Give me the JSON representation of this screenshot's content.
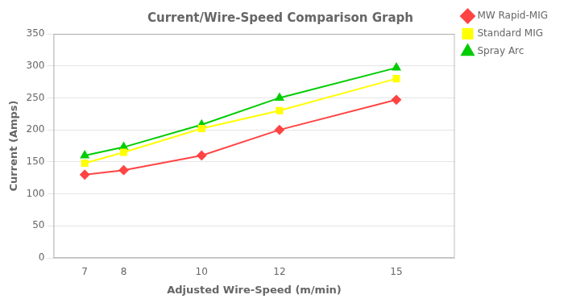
{
  "chart_data": {
    "type": "line",
    "title": "Current/Wire-Speed Comparison Graph",
    "x_label": "Adjusted Wire-Speed (m/min)",
    "y_label": "Current (Amps)",
    "x": [
      7,
      8,
      10,
      12,
      15
    ],
    "series": [
      {
        "name": "MW Rapid-MIG",
        "color": "#FF4444",
        "marker": "diamond",
        "values": [
          130,
          137,
          160,
          200,
          247
        ]
      },
      {
        "name": "Standard MIG",
        "color": "#FFFF00",
        "marker": "square",
        "values": [
          148,
          165,
          202,
          230,
          280
        ]
      },
      {
        "name": "Spray Arc",
        "color": "#00CC00",
        "marker": "triangle",
        "values": [
          160,
          173,
          208,
          250,
          297
        ]
      }
    ],
    "xlim": [
      6.2,
      16.5
    ],
    "xticks": [
      7,
      8,
      10,
      12,
      15
    ],
    "ylim": [
      0,
      350
    ],
    "yticks": [
      0,
      50,
      100,
      150,
      200,
      250,
      300,
      350
    ],
    "grid": "y",
    "legend": "right"
  }
}
